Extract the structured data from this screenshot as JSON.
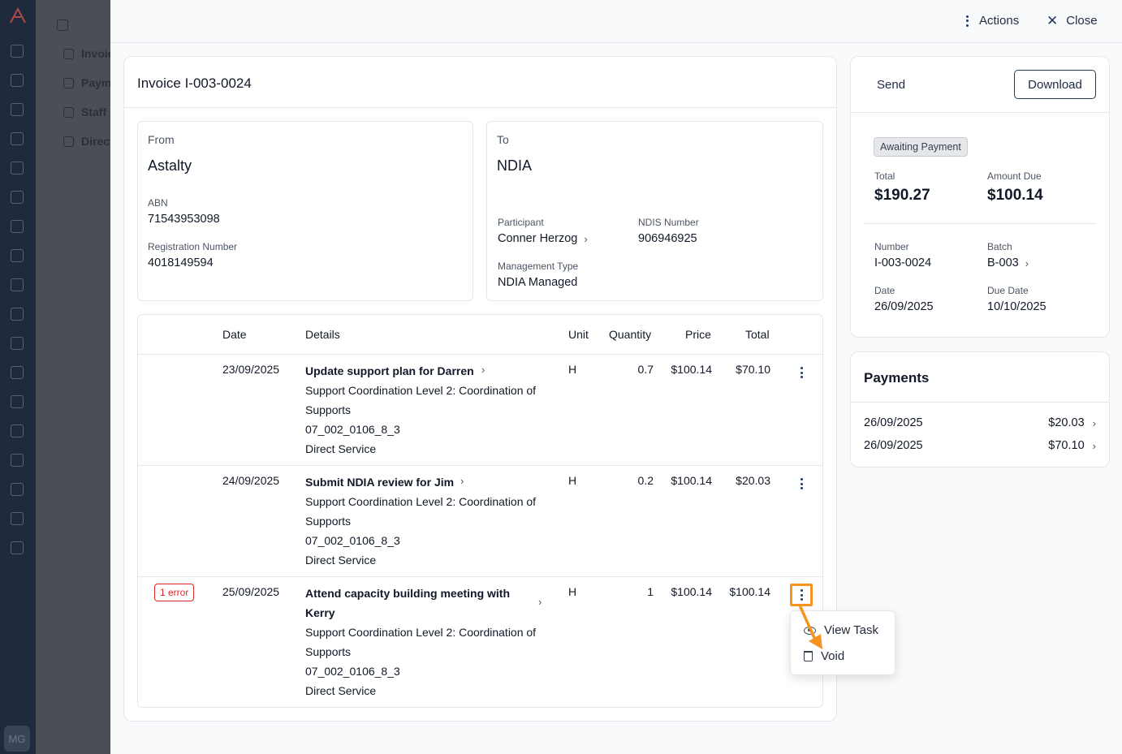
{
  "background_app": {
    "avatar_initials": "MG",
    "sidebar_items": [
      "Invoices",
      "Payments",
      "Staff",
      "Directory"
    ]
  },
  "topbar": {
    "actions_label": "Actions",
    "close_label": "Close"
  },
  "invoice": {
    "title": "Invoice I-003-0024",
    "from": {
      "heading": "From",
      "name": "Astalty",
      "abn_label": "ABN",
      "abn": "71543953098",
      "reg_label": "Registration Number",
      "reg": "4018149594"
    },
    "to": {
      "heading": "To",
      "name": "NDIA",
      "participant_label": "Participant",
      "participant": "Conner Herzog",
      "ndis_label": "NDIS Number",
      "ndis": "906946925",
      "mgmt_label": "Management Type",
      "mgmt": "NDIA Managed"
    },
    "columns": [
      "Date",
      "Details",
      "Unit",
      "Quantity",
      "Price",
      "Total"
    ],
    "rows": [
      {
        "date": "23/09/2025",
        "title": "Update support plan for Darren",
        "item": "Support Coordination Level 2: Coordination of Supports",
        "code": "07_002_0106_8_3",
        "type": "Direct Service",
        "unit": "H",
        "quantity": "0.7",
        "price": "$100.14",
        "total": "$70.10",
        "error": ""
      },
      {
        "date": "24/09/2025",
        "title": "Submit NDIA review for Jim",
        "item": "Support Coordination Level 2: Coordination of Supports",
        "code": "07_002_0106_8_3",
        "type": "Direct Service",
        "unit": "H",
        "quantity": "0.2",
        "price": "$100.14",
        "total": "$20.03",
        "error": ""
      },
      {
        "date": "25/09/2025",
        "title": "Attend capacity building meeting with Kerry",
        "item": "Support Coordination Level 2: Coordination of Supports",
        "code": "07_002_0106_8_3",
        "type": "Direct Service",
        "unit": "H",
        "quantity": "1",
        "price": "$100.14",
        "total": "$100.14",
        "error": "1 error"
      }
    ],
    "row_menu": {
      "view_task": "View Task",
      "void": "Void"
    }
  },
  "summary": {
    "send_label": "Send",
    "download_label": "Download",
    "status": "Awaiting Payment",
    "total_label": "Total",
    "total": "$190.27",
    "due_label": "Amount Due",
    "due": "$100.14",
    "number_label": "Number",
    "number": "I-003-0024",
    "batch_label": "Batch",
    "batch": "B-003",
    "date_label": "Date",
    "date": "26/09/2025",
    "due_date_label": "Due Date",
    "due_date": "10/10/2025"
  },
  "payments": {
    "title": "Payments",
    "items": [
      {
        "date": "26/09/2025",
        "amount": "$20.03"
      },
      {
        "date": "26/09/2025",
        "amount": "$70.10"
      }
    ]
  },
  "colors": {
    "highlight": "#f7931e",
    "error": "#dc2626",
    "rail": "#1f2a3d"
  }
}
